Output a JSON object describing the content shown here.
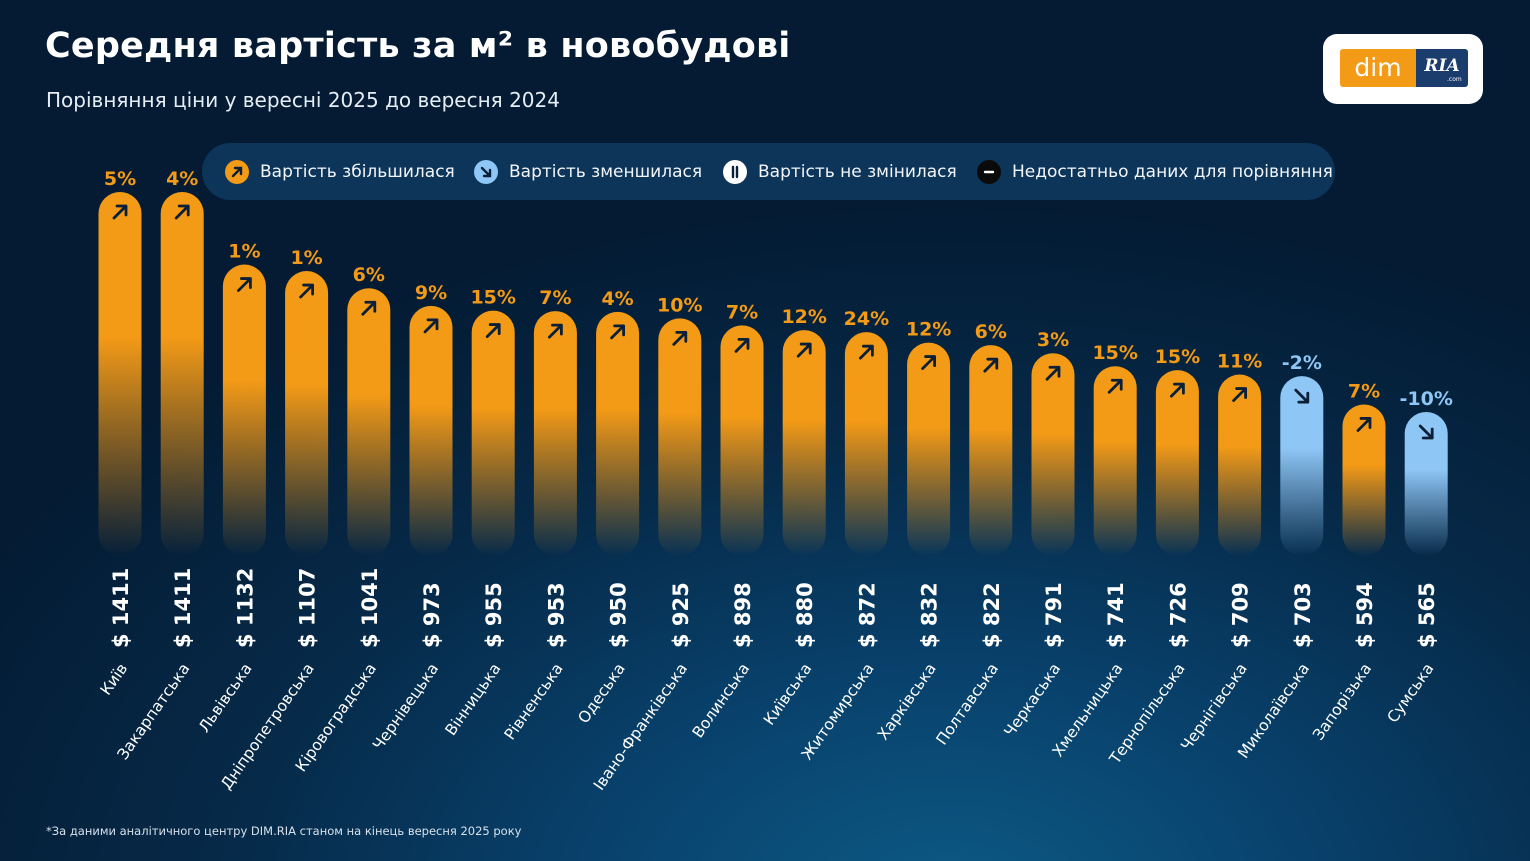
{
  "header": {
    "title": "Середня вартість за м² в новобудові",
    "subtitle": "Порівняння ціни у вересні 2025 до вересня 2024"
  },
  "logo": {
    "left": "dim",
    "right": "RIA",
    "right_small": ".com"
  },
  "legend": {
    "items": [
      {
        "label": "Вартість збільшилася",
        "icon": "arrow-up-right-icon",
        "color": "#f39a17"
      },
      {
        "label": "Вартість зменшилася",
        "icon": "arrow-down-right-icon",
        "color": "#8ec6f6"
      },
      {
        "label": "Вартість не змінилася",
        "icon": "pause-icon",
        "color": "#ffffff"
      },
      {
        "label": "Недостатньо даних для порівняння",
        "icon": "minus-icon",
        "color": "#0a0a0a"
      }
    ]
  },
  "colors": {
    "increase": "#f39a17",
    "decrease": "#8ec6f6",
    "background": "#062a49"
  },
  "chart_data": {
    "type": "bar",
    "title": "Середня вартість за м² в новобудові",
    "subtitle": "Порівняння ціни у вересні 2025 до вересня 2024",
    "ylim": [
      0,
      1411
    ],
    "grid": false,
    "currency": "$",
    "categories": [
      "Київ",
      "Закарпатська",
      "Львівська",
      "Дніпропетровська",
      "Кіровоградська",
      "Чернівецька",
      "Вінницька",
      "Рівненська",
      "Одеська",
      "Івано-Франківська",
      "Волинська",
      "Київська",
      "Житомирська",
      "Харківська",
      "Полтавська",
      "Черкаська",
      "Хмельницька",
      "Тернопільська",
      "Чернігівська",
      "Миколаївська",
      "Запорізька",
      "Сумська"
    ],
    "values": [
      1411,
      1411,
      1132,
      1107,
      1041,
      973,
      955,
      953,
      950,
      925,
      898,
      880,
      872,
      832,
      822,
      791,
      741,
      726,
      709,
      703,
      594,
      565
    ],
    "value_labels": [
      "$ 1411",
      "$ 1411",
      "$ 1132",
      "$ 1107",
      "$ 1041",
      "$ 973",
      "$ 955",
      "$ 953",
      "$ 950",
      "$ 925",
      "$ 898",
      "$ 880",
      "$ 872",
      "$ 832",
      "$ 822",
      "$ 791",
      "$ 741",
      "$ 726",
      "$ 709",
      "$ 703",
      "$ 594",
      "$ 565"
    ],
    "changes": [
      "5%",
      "4%",
      "1%",
      "1%",
      "6%",
      "9%",
      "15%",
      "7%",
      "4%",
      "10%",
      "7%",
      "12%",
      "24%",
      "12%",
      "6%",
      "3%",
      "15%",
      "15%",
      "11%",
      "-2%",
      "7%",
      "-10%"
    ],
    "directions": [
      "up",
      "up",
      "up",
      "up",
      "up",
      "up",
      "up",
      "up",
      "up",
      "up",
      "up",
      "up",
      "up",
      "up",
      "up",
      "up",
      "up",
      "up",
      "up",
      "down",
      "up",
      "down"
    ]
  },
  "footnote": "*За даними аналітичного центру DIM.RIA станом на кінець вересня 2025 року"
}
